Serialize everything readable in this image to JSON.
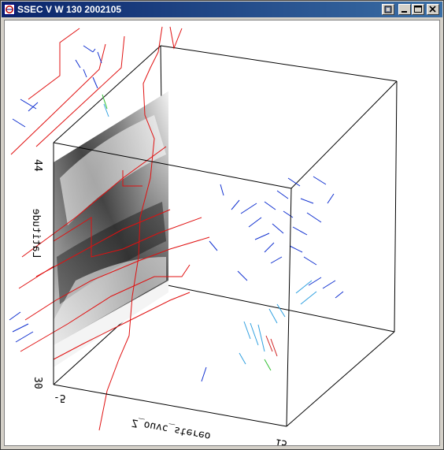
{
  "window": {
    "title": "SSEC V W 130 2002105"
  },
  "plot": {
    "y_axis_label": "Latitude",
    "y_tick_top": "44",
    "y_tick_bottom": "30",
    "x_axis_label": "Z_ouvc_stereo",
    "x_tick_left": "-5",
    "x_tick_right": "15"
  },
  "colors": {
    "map_outline": "#e01010",
    "wind_barbs_primary": "#1030d0",
    "wind_barbs_light": "#30a0e0",
    "wind_barbs_green": "#30c030",
    "wind_barbs_red": "#d02020",
    "box_edges": "#000000",
    "titlebar": "#0a246a"
  }
}
